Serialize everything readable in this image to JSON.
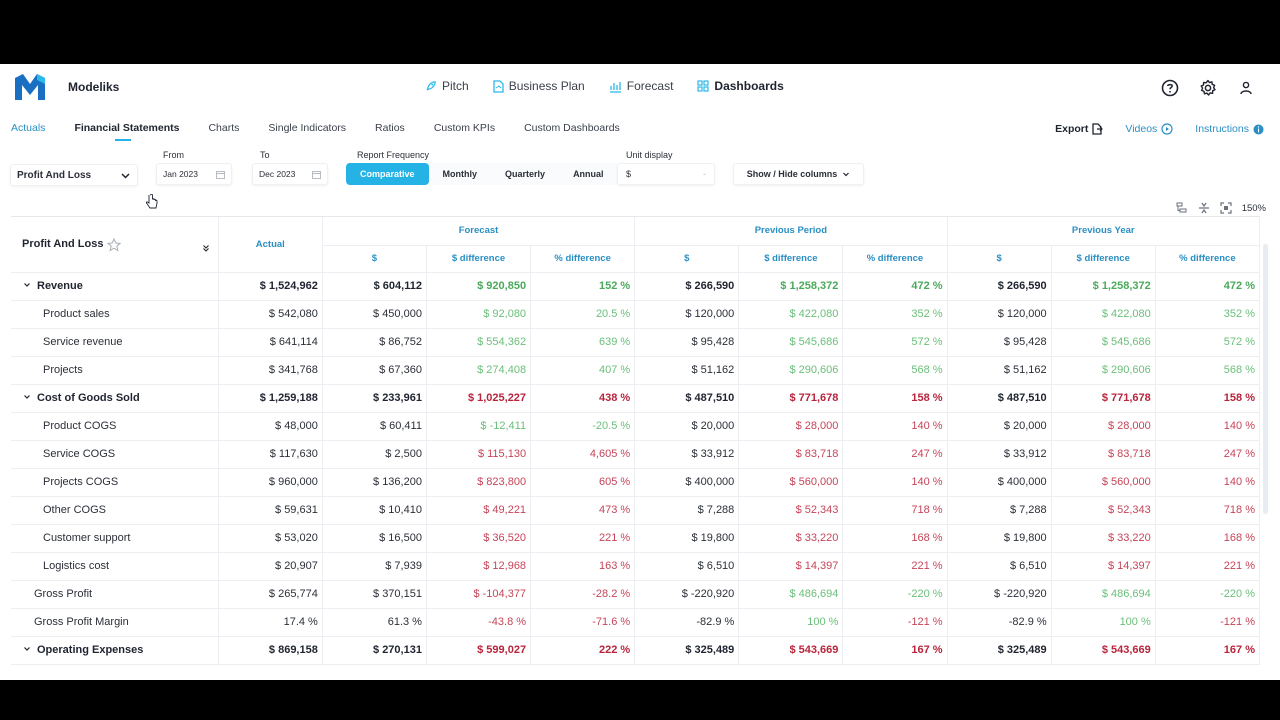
{
  "app": {
    "brand": "Modeliks"
  },
  "mainnav": {
    "pitch": "Pitch",
    "business_plan": "Business Plan",
    "forecast": "Forecast",
    "dashboards": "Dashboards"
  },
  "subtabs": [
    "Actuals",
    "Financial Statements",
    "Charts",
    "Single Indicators",
    "Ratios",
    "Custom KPIs",
    "Custom Dashboards"
  ],
  "rightlinks": {
    "export": "Export",
    "videos": "Videos",
    "instructions": "Instructions"
  },
  "filters": {
    "statement": "Profit And Loss",
    "from_label": "From",
    "from_value": "Jan 2023",
    "to_label": "To",
    "to_value": "Dec 2023",
    "freq_label": "Report Frequency",
    "freq_options": [
      "Comparative",
      "Monthly",
      "Quarterly",
      "Annual"
    ],
    "freq_selected": "Comparative",
    "unit_label": "Unit display",
    "unit_value": "$",
    "unit_dash": "-",
    "show_hide": "Show / Hide columns"
  },
  "zoom": {
    "level": "150%"
  },
  "table": {
    "title": "Profit And Loss",
    "actual": "Actual",
    "groups": [
      "Forecast",
      "Previous Period",
      "Previous Year"
    ],
    "subheads": [
      "$",
      "$ difference",
      "% difference"
    ],
    "rows": [
      {
        "label": "Revenue",
        "type": "group",
        "v": [
          "$ 1,524,962",
          "$ 604,112",
          "$ 920,850",
          "152 %",
          "$ 266,590",
          "$ 1,258,372",
          "472 %",
          "$ 266,590",
          "$ 1,258,372",
          "472 %"
        ],
        "c": [
          "",
          "",
          "pos",
          "pos",
          "",
          "pos",
          "pos",
          "",
          "pos",
          "pos"
        ]
      },
      {
        "label": "Product sales",
        "type": "child",
        "v": [
          "$ 542,080",
          "$ 450,000",
          "$ 92,080",
          "20.5 %",
          "$ 120,000",
          "$ 422,080",
          "352 %",
          "$ 120,000",
          "$ 422,080",
          "352 %"
        ],
        "c": [
          "",
          "",
          "pos",
          "pos",
          "",
          "pos",
          "pos",
          "",
          "pos",
          "pos"
        ]
      },
      {
        "label": "Service revenue",
        "type": "child",
        "v": [
          "$ 641,114",
          "$ 86,752",
          "$ 554,362",
          "639 %",
          "$ 95,428",
          "$ 545,686",
          "572 %",
          "$ 95,428",
          "$ 545,686",
          "572 %"
        ],
        "c": [
          "",
          "",
          "pos",
          "pos",
          "",
          "pos",
          "pos",
          "",
          "pos",
          "pos"
        ]
      },
      {
        "label": "Projects",
        "type": "child",
        "v": [
          "$ 341,768",
          "$ 67,360",
          "$ 274,408",
          "407 %",
          "$ 51,162",
          "$ 290,606",
          "568 %",
          "$ 51,162",
          "$ 290,606",
          "568 %"
        ],
        "c": [
          "",
          "",
          "pos",
          "pos",
          "",
          "pos",
          "pos",
          "",
          "pos",
          "pos"
        ]
      },
      {
        "label": "Cost of Goods Sold",
        "type": "group",
        "v": [
          "$ 1,259,188",
          "$ 233,961",
          "$ 1,025,227",
          "438 %",
          "$ 487,510",
          "$ 771,678",
          "158 %",
          "$ 487,510",
          "$ 771,678",
          "158 %"
        ],
        "c": [
          "",
          "",
          "neg",
          "neg",
          "",
          "neg",
          "neg",
          "",
          "neg",
          "neg"
        ]
      },
      {
        "label": "Product COGS",
        "type": "child",
        "v": [
          "$ 48,000",
          "$ 60,411",
          "$ -12,411",
          "-20.5 %",
          "$ 20,000",
          "$ 28,000",
          "140 %",
          "$ 20,000",
          "$ 28,000",
          "140 %"
        ],
        "c": [
          "",
          "",
          "pos",
          "pos",
          "",
          "neg",
          "neg",
          "",
          "neg",
          "neg"
        ]
      },
      {
        "label": "Service COGS",
        "type": "child",
        "v": [
          "$ 117,630",
          "$ 2,500",
          "$ 115,130",
          "4,605 %",
          "$ 33,912",
          "$ 83,718",
          "247 %",
          "$ 33,912",
          "$ 83,718",
          "247 %"
        ],
        "c": [
          "",
          "",
          "neg",
          "neg",
          "",
          "neg",
          "neg",
          "",
          "neg",
          "neg"
        ]
      },
      {
        "label": "Projects COGS",
        "type": "child",
        "v": [
          "$ 960,000",
          "$ 136,200",
          "$ 823,800",
          "605 %",
          "$ 400,000",
          "$ 560,000",
          "140 %",
          "$ 400,000",
          "$ 560,000",
          "140 %"
        ],
        "c": [
          "",
          "",
          "neg",
          "neg",
          "",
          "neg",
          "neg",
          "",
          "neg",
          "neg"
        ]
      },
      {
        "label": "Other COGS",
        "type": "child",
        "v": [
          "$ 59,631",
          "$ 10,410",
          "$ 49,221",
          "473 %",
          "$ 7,288",
          "$ 52,343",
          "718 %",
          "$ 7,288",
          "$ 52,343",
          "718 %"
        ],
        "c": [
          "",
          "",
          "neg",
          "neg",
          "",
          "neg",
          "neg",
          "",
          "neg",
          "neg"
        ]
      },
      {
        "label": "Customer support",
        "type": "child",
        "v": [
          "$ 53,020",
          "$ 16,500",
          "$ 36,520",
          "221 %",
          "$ 19,800",
          "$ 33,220",
          "168 %",
          "$ 19,800",
          "$ 33,220",
          "168 %"
        ],
        "c": [
          "",
          "",
          "neg",
          "neg",
          "",
          "neg",
          "neg",
          "",
          "neg",
          "neg"
        ]
      },
      {
        "label": "Logistics cost",
        "type": "child",
        "v": [
          "$ 20,907",
          "$ 7,939",
          "$ 12,968",
          "163 %",
          "$ 6,510",
          "$ 14,397",
          "221 %",
          "$ 6,510",
          "$ 14,397",
          "221 %"
        ],
        "c": [
          "",
          "",
          "neg",
          "neg",
          "",
          "neg",
          "neg",
          "",
          "neg",
          "neg"
        ]
      },
      {
        "label": "Gross Profit",
        "type": "sub",
        "v": [
          "$ 265,774",
          "$ 370,151",
          "$ -104,377",
          "-28.2 %",
          "$ -220,920",
          "$ 486,694",
          "-220 %",
          "$ -220,920",
          "$ 486,694",
          "-220 %"
        ],
        "c": [
          "",
          "",
          "neg",
          "neg",
          "",
          "pos",
          "pos",
          "",
          "pos",
          "pos"
        ]
      },
      {
        "label": "Gross Profit Margin",
        "type": "sub",
        "v": [
          "17.4 %",
          "61.3 %",
          "-43.8 %",
          "-71.6 %",
          "-82.9 %",
          "100 %",
          "-121 %",
          "-82.9 %",
          "100 %",
          "-121 %"
        ],
        "c": [
          "",
          "",
          "neg",
          "neg",
          "",
          "pos",
          "neg",
          "",
          "pos",
          "neg"
        ]
      },
      {
        "label": "Operating Expenses",
        "type": "group",
        "v": [
          "$ 869,158",
          "$ 270,131",
          "$ 599,027",
          "222 %",
          "$ 325,489",
          "$ 543,669",
          "167 %",
          "$ 325,489",
          "$ 543,669",
          "167 %"
        ],
        "c": [
          "",
          "",
          "neg",
          "neg",
          "",
          "neg",
          "neg",
          "",
          "neg",
          "neg"
        ]
      }
    ]
  },
  "colors": {
    "accent": "#25b3e6",
    "link": "#2a8fc4",
    "positive": "#6bbf7a",
    "negative": "#c64559"
  }
}
